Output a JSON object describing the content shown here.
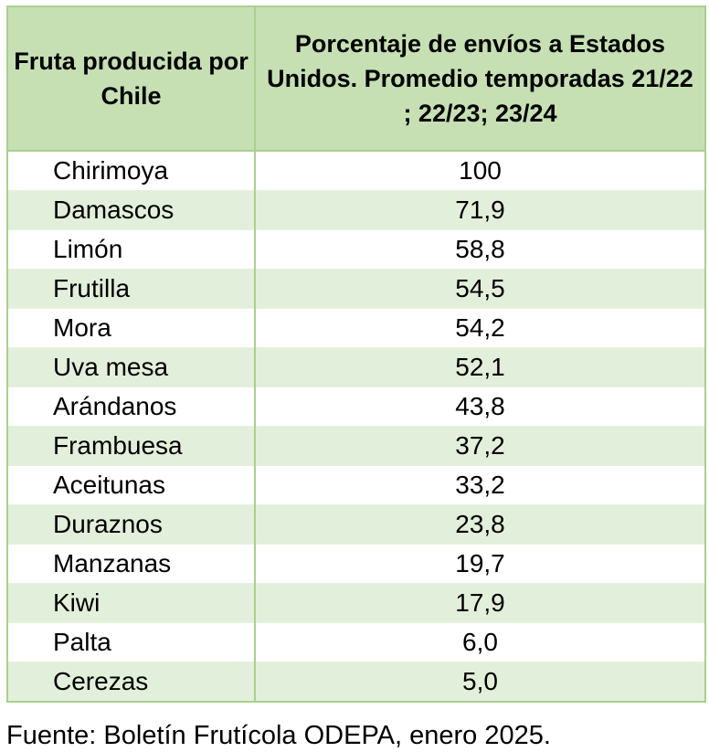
{
  "table": {
    "headers": [
      "Fruta producida por Chile",
      "Porcentaje de envíos a Estados Unidos. Promedio temporadas 21/22 ; 22/23; 23/24"
    ],
    "rows": [
      {
        "fruit": "Chirimoya",
        "value": "100"
      },
      {
        "fruit": "Damascos",
        "value": "71,9"
      },
      {
        "fruit": "Limón",
        "value": "58,8"
      },
      {
        "fruit": "Frutilla",
        "value": "54,5"
      },
      {
        "fruit": "Mora",
        "value": "54,2"
      },
      {
        "fruit": "Uva mesa",
        "value": "52,1"
      },
      {
        "fruit": "Arándanos",
        "value": "43,8"
      },
      {
        "fruit": "Frambuesa",
        "value": "37,2"
      },
      {
        "fruit": "Aceitunas",
        "value": "33,2"
      },
      {
        "fruit": "Duraznos",
        "value": "23,8"
      },
      {
        "fruit": "Manzanas",
        "value": "19,7"
      },
      {
        "fruit": "Kiwi",
        "value": "17,9"
      },
      {
        "fruit": "Palta",
        "value": "6,0"
      },
      {
        "fruit": "Cerezas",
        "value": "5,0"
      }
    ]
  },
  "source": "Fuente: Boletín Frutícola ODEPA, enero 2025.",
  "colors": {
    "header_bg": "#c6e0b4",
    "band_bg": "#e2efda",
    "border": "#a9d08e"
  }
}
